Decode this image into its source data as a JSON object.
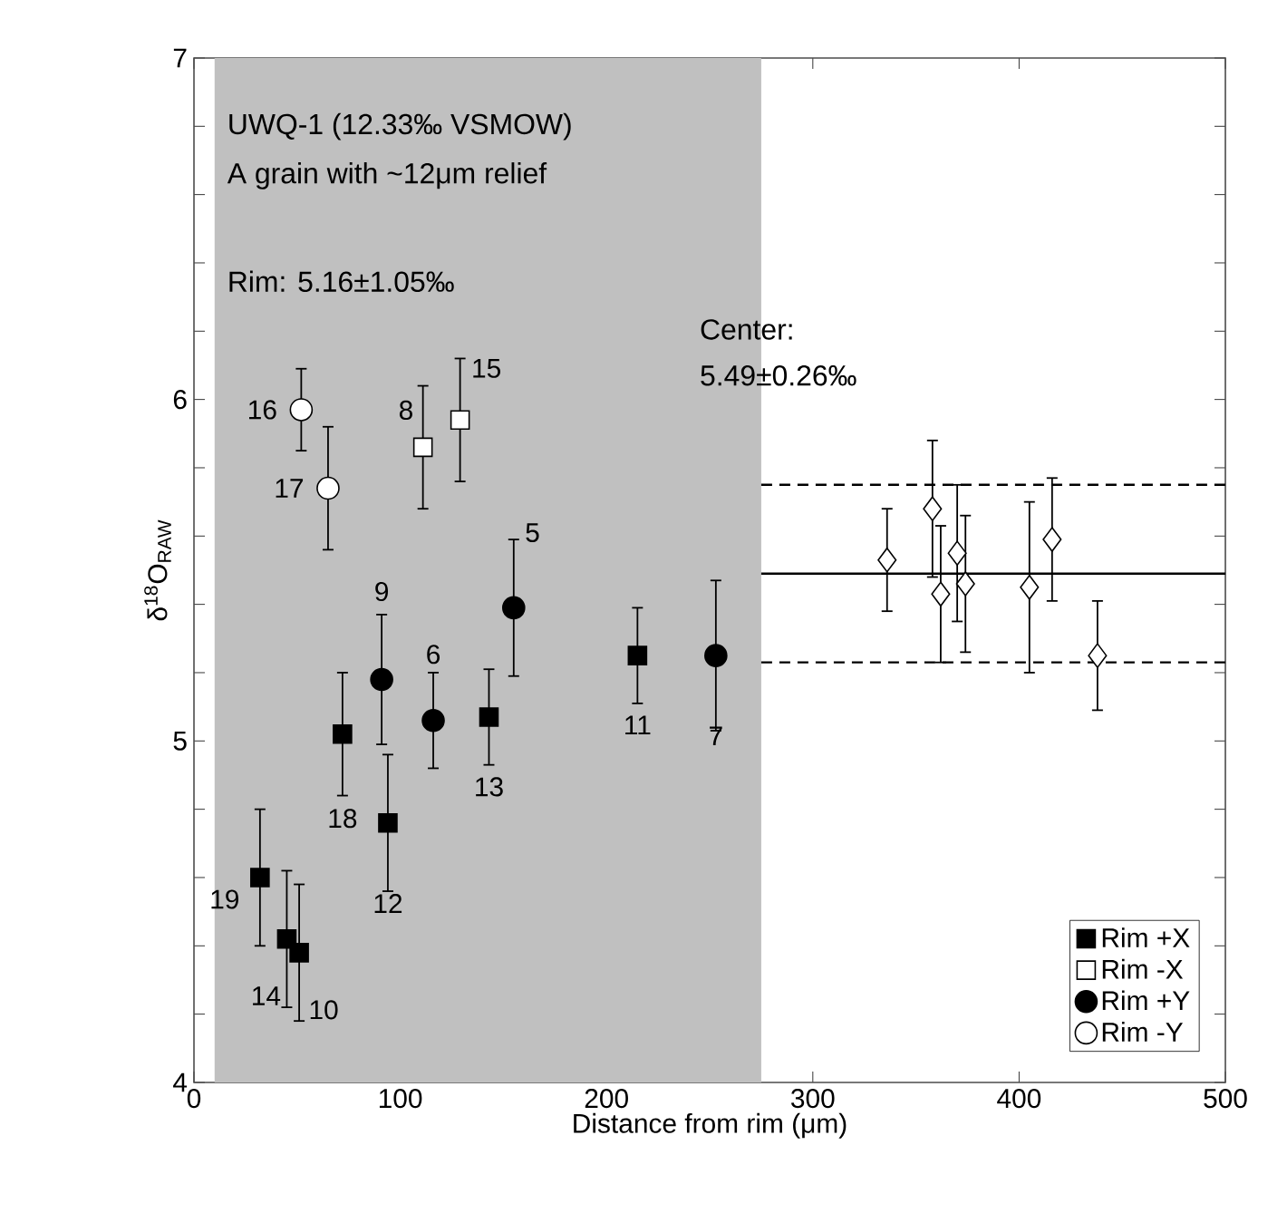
{
  "chart_data": {
    "type": "scatter",
    "xlabel": "Distance from rim (μm)",
    "ylabel": "δ$^{18}$O$_{RAW}$",
    "xlim": [
      0,
      500
    ],
    "ylim": [
      4,
      7
    ],
    "xticks": [
      0,
      100,
      200,
      300,
      400,
      500
    ],
    "yticks": [
      4,
      {
        "value": 4.2,
        "label": null
      },
      {
        "value": 4.4,
        "label": null
      },
      {
        "value": 4.6,
        "label": null
      },
      {
        "value": 4.8,
        "label": null
      },
      5,
      {
        "value": 5.2,
        "label": null
      },
      {
        "value": 5.4,
        "label": null
      },
      {
        "value": 5.6,
        "label": null
      },
      {
        "value": 5.8,
        "label": null
      },
      6,
      {
        "value": 6.2,
        "label": null
      },
      {
        "value": 6.4,
        "label": null
      },
      {
        "value": 6.6,
        "label": null
      },
      {
        "value": 6.8,
        "label": null
      },
      7
    ],
    "grid": false,
    "legend": "bottom right",
    "bands": [
      {
        "axis": "x",
        "from": 10,
        "to": 275,
        "color": "#c0c0c0"
      }
    ],
    "series": [
      {
        "name": "Rim +X",
        "color": "#000000",
        "marker": "square",
        "x": [
          32,
          45,
          51,
          72,
          94,
          143,
          215
        ],
        "values": [
          4.6,
          4.42,
          4.38,
          5.02,
          4.76,
          5.07,
          5.25
        ],
        "errors": [
          0.2,
          0.2,
          0.2,
          0.18,
          0.2,
          0.14,
          0.14
        ]
      },
      {
        "name": "Rim -X",
        "color": "#ffffff",
        "marker": "square",
        "x": [
          111,
          129
        ],
        "values": [
          5.86,
          5.94
        ],
        "errors": [
          0.18,
          0.18
        ]
      },
      {
        "name": "Rim +Y",
        "color": "#000000",
        "marker": "circle",
        "x": [
          91,
          116,
          155,
          253
        ],
        "values": [
          5.18,
          5.06,
          5.39,
          5.25
        ],
        "errors": [
          0.19,
          0.14,
          0.2,
          0.22
        ]
      },
      {
        "name": "Rim -Y",
        "color": "#ffffff",
        "marker": "circle",
        "x": [
          52,
          65
        ],
        "values": [
          5.97,
          5.74
        ],
        "errors": [
          0.12,
          0.18
        ]
      },
      {
        "color": "#ffffff",
        "marker": "diamond",
        "x": [
          336,
          358,
          362,
          370,
          374,
          405,
          416,
          438
        ],
        "values": [
          5.53,
          5.68,
          5.43,
          5.55,
          5.46,
          5.45,
          5.59,
          5.25
        ],
        "errors": [
          0.15,
          0.2,
          0.2,
          0.2,
          0.2,
          0.25,
          0.18,
          0.16
        ]
      },
      {
        "type": "line",
        "color": "#000000",
        "line_style": "solid",
        "marker": "none",
        "x": [
          275,
          500
        ],
        "values": [
          5.49,
          5.49
        ]
      },
      {
        "type": "line",
        "color": "#000000",
        "line_style": "dashed",
        "marker": "none",
        "x": [
          275,
          500
        ],
        "values": [
          5.75,
          5.75
        ]
      },
      {
        "type": "line",
        "color": "#000000",
        "line_style": "dashed",
        "marker": "none",
        "x": [
          275,
          500
        ],
        "values": [
          5.23,
          5.23
        ]
      }
    ],
    "annotations": [
      "UWQ-1 (12.33‰ VSMOW)",
      "A grain with ~12μm relief",
      "Rim: 5.16±1.05‰",
      "Center:",
      "5.49±0.26‰",
      {
        "text": "19",
        "x": 32,
        "y": 4.6
      },
      {
        "text": "14",
        "x": 45,
        "y": 4.42
      },
      {
        "text": "10",
        "x": 51,
        "y": 4.38
      },
      {
        "text": "18",
        "x": 72,
        "y": 5.02
      },
      {
        "text": "12",
        "x": 94,
        "y": 4.76
      },
      {
        "text": "13",
        "x": 143,
        "y": 5.07
      },
      {
        "text": "11",
        "x": 215,
        "y": 5.25
      },
      {
        "text": "8",
        "x": 111,
        "y": 5.86
      },
      {
        "text": "15",
        "x": 129,
        "y": 5.94
      },
      {
        "text": "9",
        "x": 91,
        "y": 5.18
      },
      {
        "text": "6",
        "x": 116,
        "y": 5.06
      },
      {
        "text": "5",
        "x": 155,
        "y": 5.39
      },
      {
        "text": "7",
        "x": 253,
        "y": 5.25
      },
      {
        "text": "16",
        "x": 52,
        "y": 5.97
      },
      {
        "text": "17",
        "x": 65,
        "y": 5.74
      }
    ]
  }
}
